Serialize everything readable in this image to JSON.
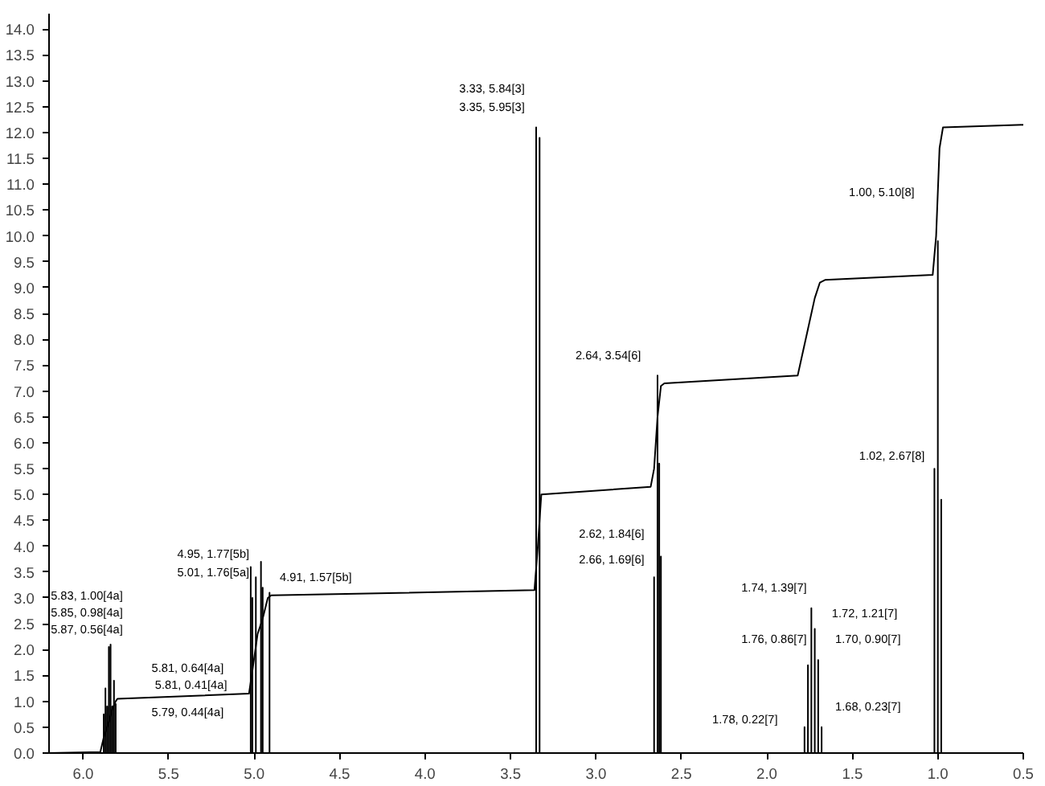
{
  "chart_data": {
    "type": "line",
    "xlim": [
      6.2,
      0.5
    ],
    "ylim": [
      0,
      14.3
    ],
    "xticks": [
      {
        "value": 6,
        "label": "6.0"
      },
      {
        "value": 5.5,
        "label": "5.5"
      },
      {
        "value": 5,
        "label": "5.0"
      },
      {
        "value": 4.5,
        "label": "4.5"
      },
      {
        "value": 4,
        "label": "4.0"
      },
      {
        "value": 3.5,
        "label": "3.5"
      },
      {
        "value": 3,
        "label": "3.0"
      },
      {
        "value": 2.5,
        "label": "2.5"
      },
      {
        "value": 2,
        "label": "2.0"
      },
      {
        "value": 1.5,
        "label": "1.5"
      },
      {
        "value": 1,
        "label": "1.0"
      },
      {
        "value": 0.5,
        "label": "0.5"
      }
    ],
    "yticks": [
      {
        "value": 0,
        "label": "0.0"
      },
      {
        "value": 0.5,
        "label": "0.5"
      },
      {
        "value": 1,
        "label": "1.0"
      },
      {
        "value": 1.5,
        "label": "1.5"
      },
      {
        "value": 2,
        "label": "2.0"
      },
      {
        "value": 2.5,
        "label": "2.5"
      },
      {
        "value": 3,
        "label": "3.0"
      },
      {
        "value": 3.5,
        "label": "3.5"
      },
      {
        "value": 4,
        "label": "4.0"
      },
      {
        "value": 4.5,
        "label": "4.5"
      },
      {
        "value": 5,
        "label": "5.0"
      },
      {
        "value": 5.5,
        "label": "5.5"
      },
      {
        "value": 6,
        "label": "6.0"
      },
      {
        "value": 6.5,
        "label": "6.5"
      },
      {
        "value": 7,
        "label": "7.0"
      },
      {
        "value": 7.5,
        "label": "7.5"
      },
      {
        "value": 8,
        "label": "8.0"
      },
      {
        "value": 8.5,
        "label": "8.5"
      },
      {
        "value": 9,
        "label": "9.0"
      },
      {
        "value": 9.5,
        "label": "9.5"
      },
      {
        "value": 10,
        "label": "10.0"
      },
      {
        "value": 10.5,
        "label": "10.5"
      },
      {
        "value": 11,
        "label": "11.0"
      },
      {
        "value": 11.5,
        "label": "11.5"
      },
      {
        "value": 12,
        "label": "12.0"
      },
      {
        "value": 12.5,
        "label": "12.5"
      },
      {
        "value": 13,
        "label": "13.0"
      },
      {
        "value": 13.5,
        "label": "13.5"
      },
      {
        "value": 14,
        "label": "14.0"
      }
    ],
    "grid": false,
    "marker": "none",
    "line_style": "solid",
    "series": [
      {
        "color": "#000000",
        "x": [
          6.2,
          5.88,
          5.88,
          5.88,
          5.87,
          5.87,
          5.87,
          5.86,
          5.86,
          5.86,
          5.85,
          5.85,
          5.85,
          5.84,
          5.84,
          5.84,
          5.83,
          5.83,
          5.83,
          5.82,
          5.82,
          5.82,
          5.81,
          5.81,
          5.81,
          5.02,
          5.02,
          5.02,
          5.01,
          5.01,
          5.01,
          4.99,
          4.99,
          4.99,
          4.96,
          4.96,
          4.96,
          4.95,
          4.95,
          4.95,
          4.91,
          4.91,
          4.91,
          3.35,
          3.35,
          3.35,
          3.33,
          3.33,
          3.33,
          2.66,
          2.66,
          2.66,
          2.64,
          2.64,
          2.64,
          2.63,
          2.63,
          2.63,
          2.62,
          2.62,
          2.62,
          1.78,
          1.78,
          1.78,
          1.76,
          1.76,
          1.76,
          1.74,
          1.74,
          1.74,
          1.72,
          1.72,
          1.72,
          1.7,
          1.7,
          1.7,
          1.68,
          1.68,
          1.68,
          1.02,
          1.02,
          1.02,
          1.0,
          1.0,
          1.0,
          0.98,
          0.98,
          0.98,
          0.5
        ],
        "values": [
          0,
          0,
          0.75,
          0,
          0,
          1.25,
          0,
          0,
          0.9,
          0,
          0,
          2.05,
          0,
          0,
          2.1,
          0,
          0,
          0.9,
          0,
          0,
          1.4,
          0,
          0,
          0.95,
          0,
          0,
          3.6,
          0,
          0,
          3.0,
          0,
          0,
          3.4,
          0,
          0,
          3.7,
          0,
          0,
          3.2,
          0,
          0,
          3.1,
          0,
          0,
          12.1,
          0,
          0,
          11.9,
          0,
          0,
          3.4,
          0,
          0,
          7.3,
          0,
          0,
          5.6,
          0,
          0,
          3.8,
          0,
          0,
          0.5,
          0,
          0,
          1.7,
          0,
          0,
          2.8,
          0,
          0,
          2.4,
          0,
          0,
          1.8,
          0,
          0,
          0.5,
          0,
          0,
          5.5,
          0,
          0,
          9.9,
          0,
          0,
          4.9,
          0,
          0
        ]
      },
      {
        "color": "#000000",
        "x": [
          6.2,
          5.9,
          5.88,
          5.85,
          5.83,
          5.81,
          5.8,
          5.03,
          5.01,
          4.98,
          4.95,
          4.92,
          4.9,
          3.36,
          3.34,
          3.32,
          2.68,
          2.66,
          2.64,
          2.62,
          2.6,
          1.82,
          1.8,
          1.76,
          1.72,
          1.69,
          1.66,
          1.03,
          1.01,
          0.99,
          0.97,
          0.5
        ],
        "values": [
          0,
          0.02,
          0.3,
          0.6,
          0.85,
          1.0,
          1.05,
          1.15,
          1.6,
          2.3,
          2.6,
          3.0,
          3.05,
          3.15,
          4.0,
          5.0,
          5.15,
          5.5,
          6.5,
          7.1,
          7.15,
          7.3,
          7.6,
          8.2,
          8.8,
          9.1,
          9.15,
          9.25,
          10.0,
          11.7,
          12.1,
          12.15
        ]
      }
    ],
    "annotations": [
      "3.33, 5.84[3]",
      "3.35, 5.95[3]",
      "1.00, 5.10[8]",
      "2.64, 3.54[6]",
      "1.02, 2.67[8]",
      "2.62, 1.84[6]",
      "2.66, 1.69[6]",
      "1.74, 1.39[7]",
      "1.72, 1.21[7]",
      "1.76, 0.86[7]",
      "1.70, 0.90[7]",
      "1.68, 0.23[7]",
      "1.78, 0.22[7]",
      "4.95, 1.77[5b]",
      "5.01, 1.76[5a]",
      "4.91, 1.57[5b]",
      "5.83, 1.00[4a]",
      "5.85, 0.98[4a]",
      "5.87, 0.56[4a]",
      "5.81, 0.64[4a]",
      "5.81, 0.41[4a]",
      "5.79, 0.44[4a]"
    ]
  }
}
